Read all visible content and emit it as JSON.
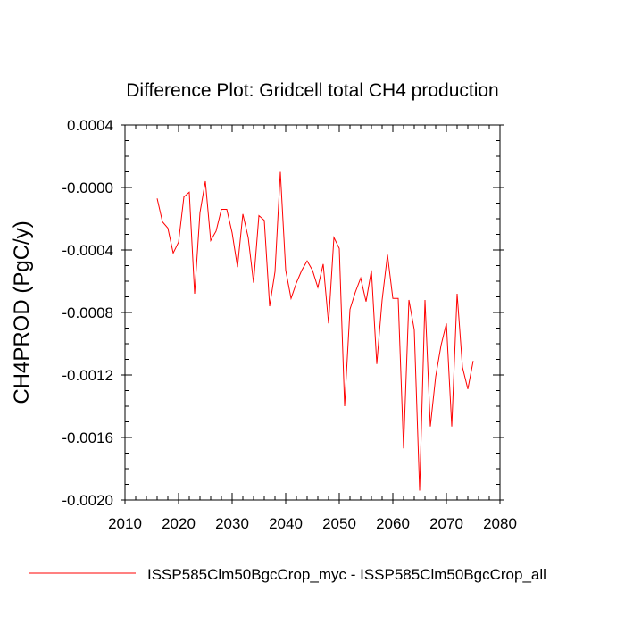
{
  "chart_data": {
    "type": "line",
    "title": "Difference Plot: Gridcell total CH4 production",
    "ylabel": "CH4PROD  (PgC/y)",
    "xlabel": "",
    "xlim": [
      2010,
      2080
    ],
    "ylim": [
      -0.002,
      0.0004
    ],
    "xticks": [
      2010,
      2020,
      2030,
      2040,
      2050,
      2060,
      2070,
      2080
    ],
    "xtick_labels": [
      "2010",
      "2020",
      "2030",
      "2040",
      "2050",
      "2060",
      "2070",
      "2080"
    ],
    "yticks": [
      0.0004,
      0.0,
      -0.0004,
      -0.0008,
      -0.0012,
      -0.0016,
      -0.002
    ],
    "ytick_labels": [
      "0.0004",
      "-0.0000",
      "-0.0004",
      "-0.0008",
      "-0.0012",
      "-0.0016",
      "-0.0020"
    ],
    "grid": false,
    "legend_position": "bottom",
    "series": [
      {
        "name": "ISSP585Clm50BgcCrop_myc - ISSP585Clm50BgcCrop_all",
        "color": "#ff0000",
        "x": [
          2016,
          2017,
          2018,
          2019,
          2020,
          2021,
          2022,
          2023,
          2024,
          2025,
          2026,
          2027,
          2028,
          2029,
          2030,
          2031,
          2032,
          2033,
          2034,
          2035,
          2036,
          2037,
          2038,
          2039,
          2040,
          2041,
          2042,
          2043,
          2044,
          2045,
          2046,
          2047,
          2048,
          2049,
          2050,
          2051,
          2052,
          2053,
          2054,
          2055,
          2056,
          2057,
          2058,
          2059,
          2060,
          2061,
          2062,
          2063,
          2064,
          2065,
          2066,
          2067,
          2068,
          2069,
          2070,
          2071,
          2072,
          2073,
          2074,
          2075
        ],
        "y": [
          -7e-05,
          -0.00022,
          -0.00026,
          -0.00042,
          -0.00035,
          -6e-05,
          -3e-05,
          -0.00068,
          -0.00016,
          4e-05,
          -0.00034,
          -0.00028,
          -0.00014,
          -0.00014,
          -0.00029,
          -0.00051,
          -0.00017,
          -0.00032,
          -0.00061,
          -0.00018,
          -0.00021,
          -0.00076,
          -0.00054,
          0.0001,
          -0.00053,
          -0.00071,
          -0.00061,
          -0.00053,
          -0.00047,
          -0.00053,
          -0.00064,
          -0.00049,
          -0.00087,
          -0.00032,
          -0.00039,
          -0.0014,
          -0.00078,
          -0.00067,
          -0.00058,
          -0.00073,
          -0.00053,
          -0.00113,
          -0.00072,
          -0.00043,
          -0.00071,
          -0.00071,
          -0.00167,
          -0.00072,
          -0.00091,
          -0.00194,
          -0.00072,
          -0.00153,
          -0.00121,
          -0.00101,
          -0.00087,
          -0.00153,
          -0.00068,
          -0.00115,
          -0.00129,
          -0.00111
        ]
      }
    ]
  }
}
